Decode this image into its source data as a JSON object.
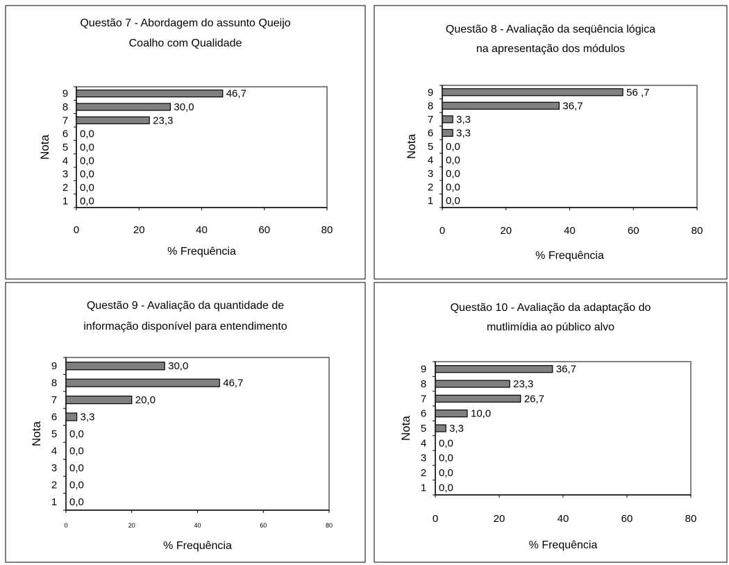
{
  "chart_data": [
    {
      "type": "bar",
      "orientation": "horizontal",
      "title_lines": [
        "Questão 7 - Abordagem do assunto Queijo",
        "Coalho com Qualidade"
      ],
      "xlabel": "% Frequência",
      "ylabel": "Nota",
      "categories": [
        "1",
        "2",
        "3",
        "4",
        "5",
        "6",
        "7",
        "8",
        "9"
      ],
      "values": [
        0.0,
        0.0,
        0.0,
        0.0,
        0.0,
        0.0,
        23.3,
        30.0,
        46.7
      ],
      "value_labels": [
        "0,0",
        "0,0",
        "0,0",
        "0,0",
        "0,0",
        "0,0",
        "23,3",
        "30,0",
        "46,7"
      ],
      "xlim": [
        0,
        80
      ],
      "xticks": [
        "0",
        "20",
        "40",
        "60",
        "80"
      ],
      "bar_color": "#808080",
      "grid": false
    },
    {
      "type": "bar",
      "orientation": "horizontal",
      "title_lines": [
        "Questão 8 - Avaliação da seqüência lógica",
        "na apresentação dos módulos"
      ],
      "xlabel": "% Frequência",
      "ylabel": "Nota",
      "categories": [
        "1",
        "2",
        "3",
        "4",
        "5",
        "6",
        "7",
        "8",
        "9"
      ],
      "values": [
        0.0,
        0.0,
        0.0,
        0.0,
        0.0,
        3.3,
        3.3,
        36.7,
        56.7
      ],
      "value_labels": [
        "0,0",
        "0,0",
        "0,0",
        "0,0",
        "0,0",
        "3,3",
        "3,3",
        "36,7",
        "56 ,7"
      ],
      "xlim": [
        0,
        80
      ],
      "xticks": [
        "0",
        "20",
        "40",
        "60",
        "80"
      ],
      "bar_color": "#808080",
      "grid": false
    },
    {
      "type": "bar",
      "orientation": "horizontal",
      "title_lines": [
        "Questão 9 - Avaliação da quantidade de",
        "informação disponível para entendimento"
      ],
      "xlabel": "% Frequência",
      "ylabel": "Nota",
      "categories": [
        "1",
        "2",
        "3",
        "4",
        "5",
        "6",
        "7",
        "8",
        "9"
      ],
      "values": [
        0.0,
        0.0,
        0.0,
        0.0,
        0.0,
        3.3,
        20.0,
        46.7,
        30.0
      ],
      "value_labels": [
        "0,0",
        "0,0",
        "0,0",
        "0,0",
        "0,0",
        "3,3",
        "20,0",
        "46,7",
        "30,0"
      ],
      "xlim": [
        0,
        80
      ],
      "xticks": [
        "0",
        "20",
        "40",
        "60",
        "80"
      ],
      "bar_color": "#808080",
      "grid": false
    },
    {
      "type": "bar",
      "orientation": "horizontal",
      "title_lines": [
        "Questão 10 - Avaliação da adaptação do",
        "mutlimídia ao público alvo"
      ],
      "xlabel": "% Frequência",
      "ylabel": "Nota",
      "categories": [
        "1",
        "2",
        "3",
        "4",
        "5",
        "6",
        "7",
        "8",
        "9"
      ],
      "values": [
        0.0,
        0.0,
        0.0,
        0.0,
        3.3,
        10.0,
        26.7,
        23.3,
        36.7
      ],
      "value_labels": [
        "0,0",
        "0,0",
        "0,0",
        "0,0",
        "3,3",
        "10,0",
        "26,7",
        "23,3",
        "36,7"
      ],
      "xlim": [
        0,
        80
      ],
      "xticks": [
        "0",
        "20",
        "40",
        "60",
        "80"
      ],
      "bar_color": "#808080",
      "grid": false
    }
  ]
}
